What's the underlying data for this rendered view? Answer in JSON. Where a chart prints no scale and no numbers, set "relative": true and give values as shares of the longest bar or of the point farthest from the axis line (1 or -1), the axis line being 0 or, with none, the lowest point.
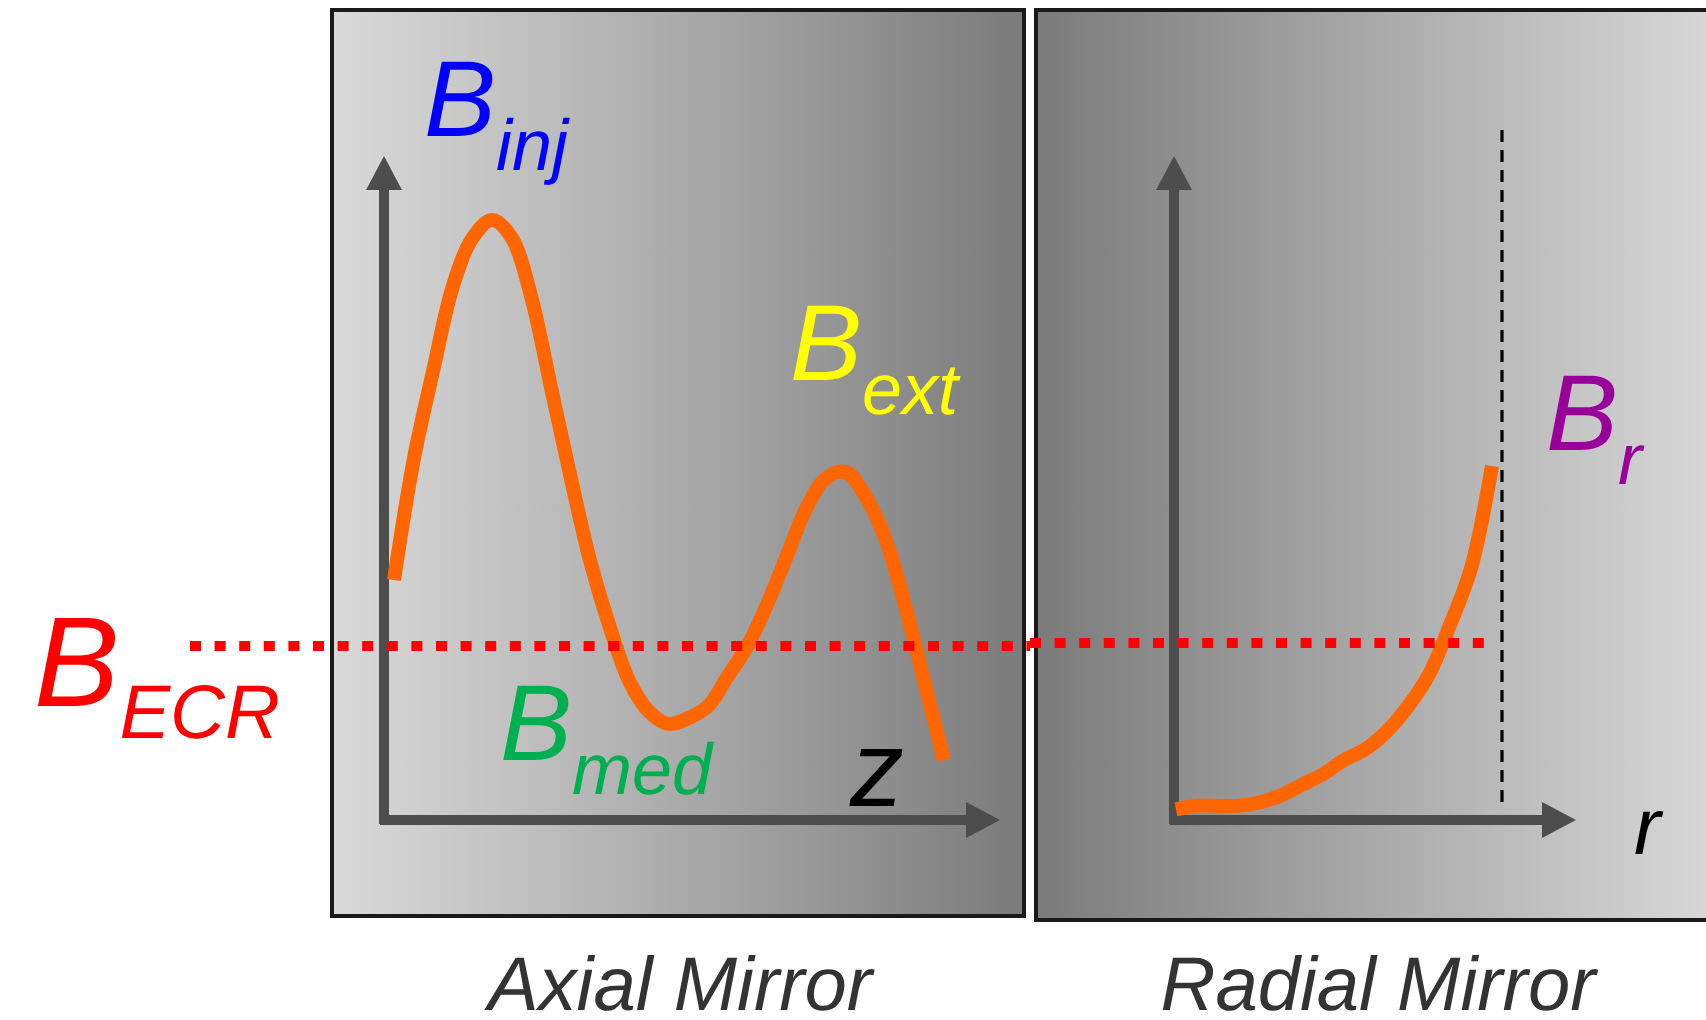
{
  "chart_data": [
    {
      "type": "line",
      "title": "Axial Mirror",
      "xlabel": "z",
      "relative": true,
      "categories": [
        null,
        null,
        null,
        null,
        null,
        null,
        null,
        null,
        null,
        null,
        null,
        null,
        null,
        null,
        null,
        null,
        null,
        null,
        null,
        null,
        null,
        null,
        null,
        null,
        null,
        null,
        null,
        null,
        null
      ],
      "series": [
        {
          "color": "#ff6600",
          "values": [
            0.4,
            0.6,
            0.75,
            0.89,
            0.97,
            1,
            0.97,
            0.87,
            0.72,
            0.57,
            0.43,
            0.32,
            0.23,
            0.18,
            0.16,
            0.17,
            0.19,
            0.24,
            0.29,
            0.36,
            0.44,
            0.52,
            0.57,
            0.58,
            0.54,
            0.47,
            0.36,
            0.23,
            0.1
          ]
        }
      ],
      "ref_lines": [
        {
          "axis": "y",
          "value": 0.29,
          "label": "B$_{ECR}$",
          "color": "#ff0000",
          "line_style": "dotted"
        }
      ],
      "annotations": [
        "B$_{inj}$",
        "B$_{ext}$",
        "B$_{med}$"
      ]
    },
    {
      "type": "line",
      "title": "Radial Mirror",
      "xlabel": "r",
      "relative": true,
      "categories": [
        null,
        null,
        null,
        null,
        null,
        null,
        null,
        null,
        null,
        null,
        null,
        null,
        null,
        null,
        null,
        null
      ],
      "series": [
        {
          "color": "#ff6600",
          "values": [
            0.03,
            0.04,
            0.04,
            0.04,
            0.05,
            0.07,
            0.1,
            0.13,
            0.17,
            0.2,
            0.25,
            0.32,
            0.41,
            0.55,
            0.71,
            1
          ]
        }
      ],
      "ref_lines": [
        {
          "axis": "y",
          "value": 0.5,
          "color": "#ff0000",
          "line_style": "dotted"
        }
      ],
      "annotations": [
        "B$_{r}$"
      ]
    }
  ]
}
